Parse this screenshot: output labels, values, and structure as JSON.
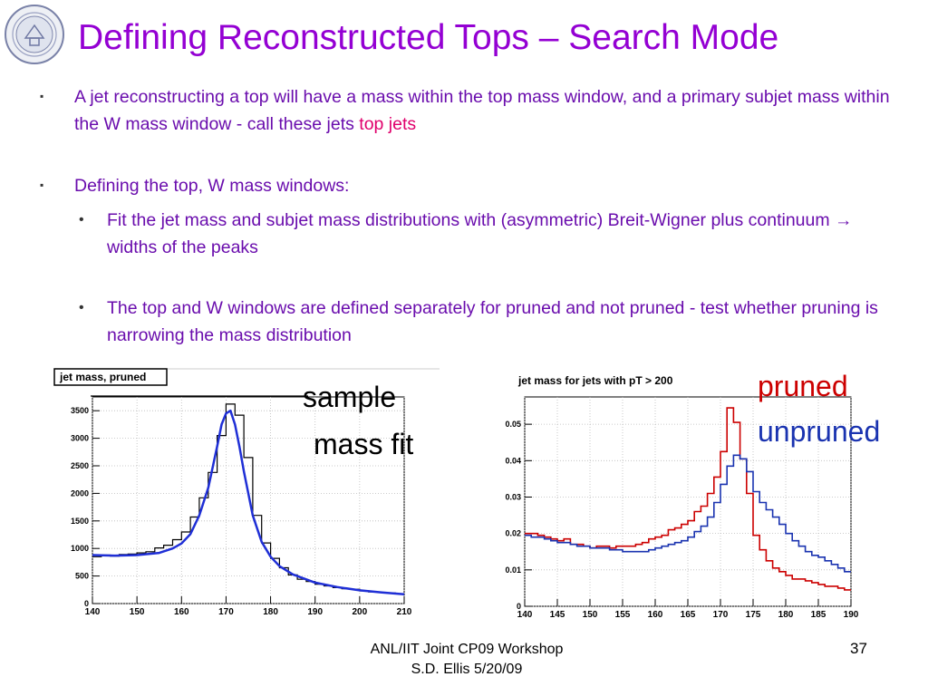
{
  "title": "Defining Reconstructed Tops – Search Mode",
  "bullets": {
    "b1": "A jet reconstructing a top will have a mass within the top mass window, and a primary subjet mass within the W mass window - call these jets ",
    "b1_highlight": "top jets",
    "b2": "Defining the top, W mass windows:",
    "b2a": "Fit the jet mass and subjet mass distributions with (asymmetric) Breit-Wigner plus continuum → widths of the peaks",
    "b2b": "The top and W windows are defined separately for pruned and not pruned - test whether pruning is narrowing the mass distribution"
  },
  "annotations": {
    "sample_line1": "sample",
    "sample_line2": "mass fit",
    "pruned": "pruned",
    "unpruned": "unpruned"
  },
  "colors": {
    "title": "#9400d3",
    "text": "#6a0dad",
    "highlight": "#e0006c",
    "pruned": "#cc0000",
    "unpruned": "#1a33b0",
    "fit": "#1f2fd6"
  },
  "footer": {
    "line1": "ANL/IIT Joint CP09 Workshop",
    "line2": "S.D. Ellis 5/20/09",
    "page": "37"
  },
  "chart_data": [
    {
      "type": "line",
      "title": "jet mass, pruned",
      "xlim": [
        140,
        210
      ],
      "ylim": [
        0,
        3750
      ],
      "xticks": [
        "140",
        "150",
        "160",
        "170",
        "180",
        "190",
        "200",
        "210"
      ],
      "yticks": [
        "0",
        "500",
        "1000",
        "1500",
        "2000",
        "2500",
        "3000",
        "3500"
      ],
      "grid": true,
      "series": [
        {
          "style": "histogram",
          "x": [
            140,
            142,
            144,
            146,
            148,
            150,
            152,
            154,
            156,
            158,
            160,
            162,
            164,
            166,
            168,
            170,
            172,
            174,
            176,
            178,
            180,
            182,
            184,
            186,
            188,
            190,
            192,
            194,
            196,
            198,
            200,
            202,
            204,
            206,
            208
          ],
          "values": [
            850,
            880,
            860,
            890,
            900,
            920,
            940,
            1010,
            1060,
            1160,
            1300,
            1570,
            1920,
            2380,
            3050,
            3620,
            3420,
            2650,
            1600,
            1100,
            820,
            650,
            520,
            440,
            400,
            350,
            320,
            290,
            270,
            260,
            230,
            210,
            200,
            190,
            180
          ]
        },
        {
          "style": "curve",
          "x": [
            140,
            145,
            150,
            155,
            158,
            160,
            162,
            164,
            166,
            168,
            169,
            170,
            171,
            172,
            173,
            174,
            176,
            178,
            180,
            182,
            185,
            190,
            195,
            200,
            205,
            210
          ],
          "values": [
            880,
            870,
            880,
            920,
            1000,
            1090,
            1260,
            1600,
            2100,
            2850,
            3250,
            3450,
            3500,
            3250,
            2850,
            2400,
            1600,
            1120,
            850,
            680,
            530,
            380,
            300,
            240,
            200,
            170
          ]
        }
      ]
    },
    {
      "type": "line",
      "title": "jet mass for jets with pT > 200",
      "xlim": [
        140,
        190
      ],
      "ylim": [
        0,
        0.0575
      ],
      "xticks": [
        "140",
        "145",
        "150",
        "155",
        "160",
        "165",
        "170",
        "175",
        "180",
        "185",
        "190"
      ],
      "yticks": [
        "0",
        "0.01",
        "0.02",
        "0.03",
        "0.04",
        "0.05"
      ],
      "grid": true,
      "series": [
        {
          "name": "pruned",
          "style": "histogram",
          "x": [
            140,
            141,
            142,
            143,
            144,
            145,
            146,
            147,
            148,
            149,
            150,
            151,
            152,
            153,
            154,
            155,
            156,
            157,
            158,
            159,
            160,
            161,
            162,
            163,
            164,
            165,
            166,
            167,
            168,
            169,
            170,
            171,
            172,
            173,
            174,
            175,
            176,
            177,
            178,
            179,
            180,
            181,
            182,
            183,
            184,
            185,
            186,
            187,
            188,
            189
          ],
          "values": [
            0.02,
            0.02,
            0.0195,
            0.019,
            0.0185,
            0.018,
            0.0185,
            0.017,
            0.017,
            0.0165,
            0.016,
            0.0165,
            0.0165,
            0.016,
            0.0165,
            0.0165,
            0.0165,
            0.017,
            0.0175,
            0.0185,
            0.019,
            0.0195,
            0.021,
            0.0215,
            0.0225,
            0.0235,
            0.026,
            0.0275,
            0.031,
            0.0355,
            0.0425,
            0.0545,
            0.0505,
            0.0405,
            0.031,
            0.0195,
            0.0155,
            0.0125,
            0.0105,
            0.0095,
            0.0085,
            0.0075,
            0.0075,
            0.007,
            0.0065,
            0.006,
            0.0055,
            0.0055,
            0.005,
            0.0045
          ]
        },
        {
          "name": "unpruned",
          "style": "histogram",
          "x": [
            140,
            141,
            142,
            143,
            144,
            145,
            146,
            147,
            148,
            149,
            150,
            151,
            152,
            153,
            154,
            155,
            156,
            157,
            158,
            159,
            160,
            161,
            162,
            163,
            164,
            165,
            166,
            167,
            168,
            169,
            170,
            171,
            172,
            173,
            174,
            175,
            176,
            177,
            178,
            179,
            180,
            181,
            182,
            183,
            184,
            185,
            186,
            187,
            188,
            189
          ],
          "values": [
            0.0195,
            0.019,
            0.019,
            0.0185,
            0.018,
            0.0175,
            0.0175,
            0.017,
            0.0165,
            0.0165,
            0.016,
            0.016,
            0.016,
            0.0155,
            0.0155,
            0.015,
            0.015,
            0.015,
            0.015,
            0.0155,
            0.016,
            0.0165,
            0.017,
            0.0175,
            0.018,
            0.019,
            0.0205,
            0.022,
            0.0245,
            0.0285,
            0.0335,
            0.0385,
            0.0415,
            0.0405,
            0.037,
            0.0315,
            0.0285,
            0.0265,
            0.0245,
            0.0225,
            0.02,
            0.018,
            0.0165,
            0.015,
            0.014,
            0.0135,
            0.0125,
            0.0115,
            0.0105,
            0.0095
          ]
        }
      ]
    }
  ]
}
